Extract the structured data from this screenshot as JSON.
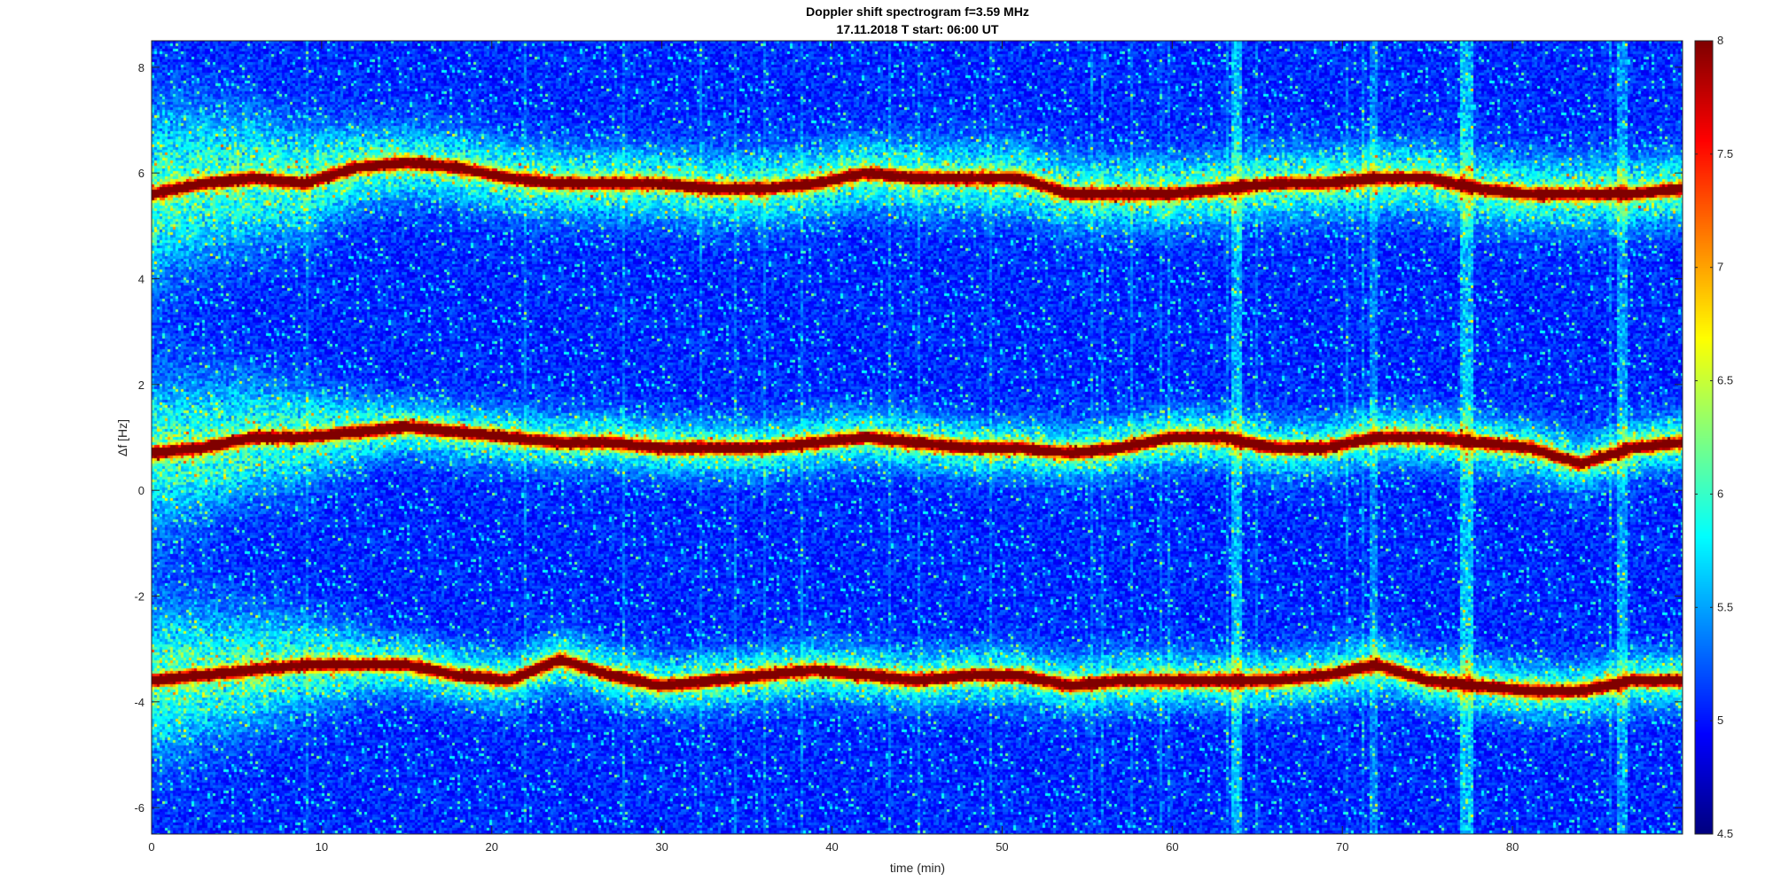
{
  "chart_data": {
    "type": "heatmap",
    "title": "Doppler shift spectrogram f=3.59 MHz",
    "subtitle": "17.11.2018   T start: 06:00 UT",
    "xlabel": "time (min)",
    "ylabel": "Δf [Hz]",
    "xlim": [
      0,
      90
    ],
    "ylim": [
      -6.5,
      8.5
    ],
    "xticks": [
      0,
      10,
      20,
      30,
      40,
      50,
      60,
      70,
      80
    ],
    "yticks": [
      8,
      6,
      4,
      2,
      0,
      -2,
      -4,
      -6
    ],
    "colorbar": {
      "colormap": "jet",
      "clim": [
        4.5,
        8
      ],
      "ticks": [
        8,
        7.5,
        7,
        6.5,
        6,
        5.5,
        5,
        4.5
      ]
    },
    "series": [
      {
        "x": [
          0,
          3,
          6,
          9,
          12,
          15,
          18,
          21,
          24,
          27,
          30,
          33,
          36,
          39,
          42,
          45,
          48,
          51,
          54,
          57,
          60,
          63,
          66,
          69,
          72,
          75,
          78,
          81,
          84,
          87,
          90
        ],
        "values": [
          5.6,
          5.8,
          5.9,
          5.8,
          6.1,
          6.2,
          6.1,
          5.9,
          5.8,
          5.8,
          5.8,
          5.7,
          5.7,
          5.8,
          6.0,
          5.9,
          5.9,
          5.9,
          5.6,
          5.6,
          5.6,
          5.7,
          5.8,
          5.8,
          5.9,
          5.9,
          5.7,
          5.6,
          5.6,
          5.6,
          5.7
        ]
      },
      {
        "x": [
          0,
          3,
          6,
          9,
          12,
          15,
          18,
          21,
          24,
          27,
          30,
          33,
          36,
          39,
          42,
          45,
          48,
          51,
          54,
          57,
          60,
          63,
          66,
          69,
          72,
          75,
          78,
          81,
          84,
          87,
          90
        ],
        "values": [
          0.7,
          0.8,
          1.0,
          1.0,
          1.1,
          1.2,
          1.1,
          1.0,
          0.9,
          0.9,
          0.8,
          0.8,
          0.8,
          0.9,
          1.0,
          0.9,
          0.8,
          0.8,
          0.7,
          0.8,
          1.0,
          1.0,
          0.8,
          0.8,
          1.0,
          1.0,
          0.9,
          0.8,
          0.5,
          0.8,
          0.9
        ]
      },
      {
        "x": [
          0,
          3,
          6,
          9,
          12,
          15,
          18,
          21,
          24,
          27,
          30,
          33,
          36,
          39,
          42,
          45,
          48,
          51,
          54,
          57,
          60,
          63,
          66,
          69,
          72,
          75,
          78,
          81,
          84,
          87,
          90
        ],
        "values": [
          -3.6,
          -3.5,
          -3.4,
          -3.3,
          -3.3,
          -3.3,
          -3.5,
          -3.6,
          -3.2,
          -3.5,
          -3.7,
          -3.6,
          -3.5,
          -3.4,
          -3.5,
          -3.6,
          -3.5,
          -3.5,
          -3.7,
          -3.6,
          -3.6,
          -3.6,
          -3.6,
          -3.5,
          -3.3,
          -3.6,
          -3.7,
          -3.8,
          -3.8,
          -3.6,
          -3.6
        ]
      }
    ]
  }
}
